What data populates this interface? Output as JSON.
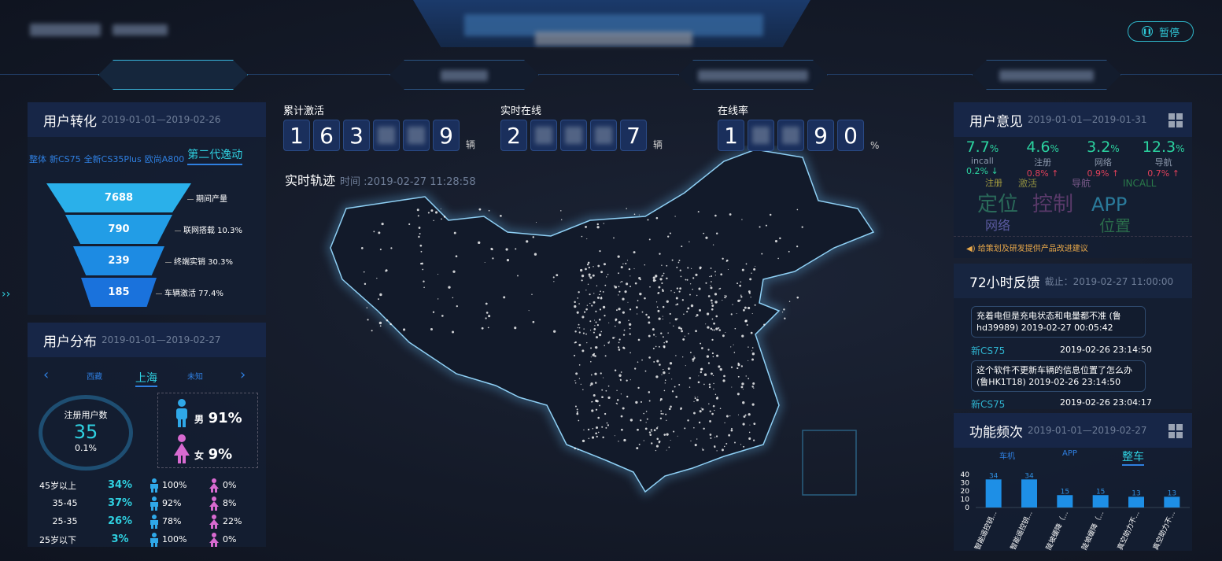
{
  "header": {
    "pause_label": "暂停"
  },
  "counters": [
    {
      "label": "累计激活",
      "digits": [
        "1",
        "6",
        "3",
        "",
        "",
        "9"
      ],
      "unit": "辆"
    },
    {
      "label": "实时在线",
      "digits": [
        "2",
        "",
        "",
        "",
        "7"
      ],
      "unit": "辆"
    },
    {
      "label": "在线率",
      "digits": [
        "1",
        "",
        "",
        "9",
        "0"
      ],
      "unit": "%"
    }
  ],
  "track": {
    "title": "实时轨迹",
    "time": "时间 :2019-02-27 11:28:58"
  },
  "conversion": {
    "title": "用户转化",
    "date": "2019-01-01—2019-02-26",
    "tabs": [
      "整体",
      "新CS75",
      "全新CS35Plus",
      "欧尚A800",
      "第二代逸动"
    ],
    "active_tab": "第二代逸动",
    "funnel": [
      {
        "value": "7688",
        "label": "期间产量"
      },
      {
        "value": "790",
        "label": "联网搭载  10.3%"
      },
      {
        "value": "239",
        "label": "终端实销  30.3%"
      },
      {
        "value": "185",
        "label": "车辆激活  77.4%"
      }
    ]
  },
  "distribution": {
    "title": "用户分布",
    "date": "2019-01-01—2019-02-27",
    "regions": [
      "西藏",
      "上海",
      "未知"
    ],
    "active_region": "上海",
    "registered_label": "注册用户数",
    "registered": "35",
    "registered_pct": "0.1%",
    "male_label": "男",
    "male_pct": "91%",
    "female_label": "女",
    "female_pct": "9%",
    "ages": [
      {
        "range": "45岁以上",
        "pct": "34%",
        "male": "100%",
        "female": "0%"
      },
      {
        "range": "35-45",
        "pct": "37%",
        "male": "92%",
        "female": "8%"
      },
      {
        "range": "25-35",
        "pct": "26%",
        "male": "78%",
        "female": "22%"
      },
      {
        "range": "25岁以下",
        "pct": "3%",
        "male": "100%",
        "female": "0%"
      }
    ]
  },
  "opinion": {
    "title": "用户意见",
    "date": "2019-01-01—2019-01-31",
    "stats": [
      {
        "value": "7.7",
        "unit": "%",
        "name": "incall",
        "change": "0.2% ↓",
        "dir": "down"
      },
      {
        "value": "4.6",
        "unit": "%",
        "name": "注册",
        "change": "0.8% ↑",
        "dir": "up"
      },
      {
        "value": "3.2",
        "unit": "%",
        "name": "网络",
        "change": "0.9% ↑",
        "dir": "up"
      },
      {
        "value": "12.3",
        "unit": "%",
        "name": "导航",
        "change": "0.7% ↑",
        "dir": "up"
      }
    ],
    "words": [
      "注册",
      "激活",
      "导航",
      "INCALL",
      "定位",
      "控制",
      "APP",
      "网络",
      "位置"
    ],
    "notice": "给策划及研发提供产品改进建议"
  },
  "feedback": {
    "title": "72小时反馈",
    "cutoff": "截止：2019-02-27 11:00:00",
    "items": [
      {
        "model": "",
        "time": "",
        "text": "充着电但是充电状态和电量都不准 (鲁hd39989) 2019-02-27 00:05:42"
      },
      {
        "model": "新CS75",
        "time": "2019-02-26 23:14:50",
        "text": "这个软件不更新车辆的信息位置了怎么办(鲁HK1T18) 2019-02-26 23:14:50"
      },
      {
        "model": "新CS75",
        "time": "2019-02-26 23:04:17",
        "text": ""
      }
    ]
  },
  "frequency": {
    "title": "功能频次",
    "date": "2019-01-01—2019-02-27",
    "tabs": [
      "车机",
      "APP",
      "整车"
    ],
    "active_tab": "整车"
  },
  "chart_data": {
    "type": "bar",
    "categories": [
      "智能遥控钥...",
      "智能遥控钥...",
      "陡坡缓降（...",
      "陡坡缓降（...",
      "真空助力不...",
      "真空助力不..."
    ],
    "values": [
      34,
      34,
      15,
      15,
      13,
      13
    ],
    "ylim": [
      0,
      40
    ],
    "yticks": [
      0,
      10,
      20,
      30,
      40
    ],
    "color": "#1e8fe6"
  },
  "colors": {
    "accent": "#2fd0e0",
    "up": "#e0405a",
    "down": "#2bd3a0",
    "male": "#2fa8e8",
    "female": "#d86ad0"
  }
}
